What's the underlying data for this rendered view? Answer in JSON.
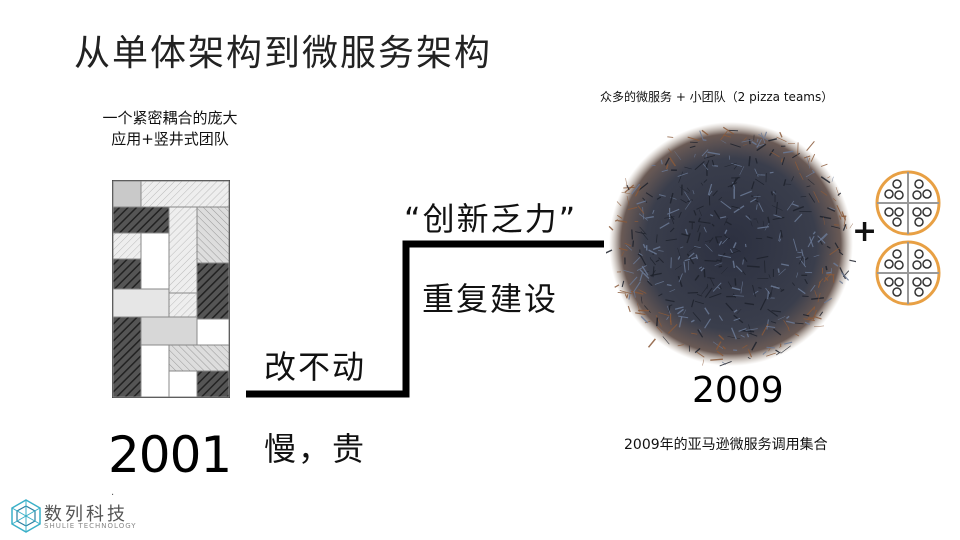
{
  "slide": {
    "title": "从单体架构到微服务架构",
    "left_caption_line1": "一个紧密耦合的庞大",
    "left_caption_line2": "应用+竖井式团队",
    "year_left": "2001",
    "dot": "·",
    "text_no_change": "改不动",
    "text_slow_expensive": "慢，贵",
    "text_innovation": "“创新乏力”",
    "text_rebuild": "重复建设",
    "right_caption": "众多的微服务 + 小团队（2 pizza teams）",
    "year_right": "2009",
    "bottom_caption": "2009年的亚马逊微服务调用集合",
    "plus": "+"
  },
  "logo": {
    "name": "数列科技",
    "subtitle": "SHULIE TECHNOLOGY",
    "icon": "hexagon-network-icon"
  },
  "colors": {
    "accent_orange": "#e8a044",
    "line": "#000000",
    "sphere_dark": "#2a2f3a",
    "sphere_brown": "#8a5a3a"
  }
}
